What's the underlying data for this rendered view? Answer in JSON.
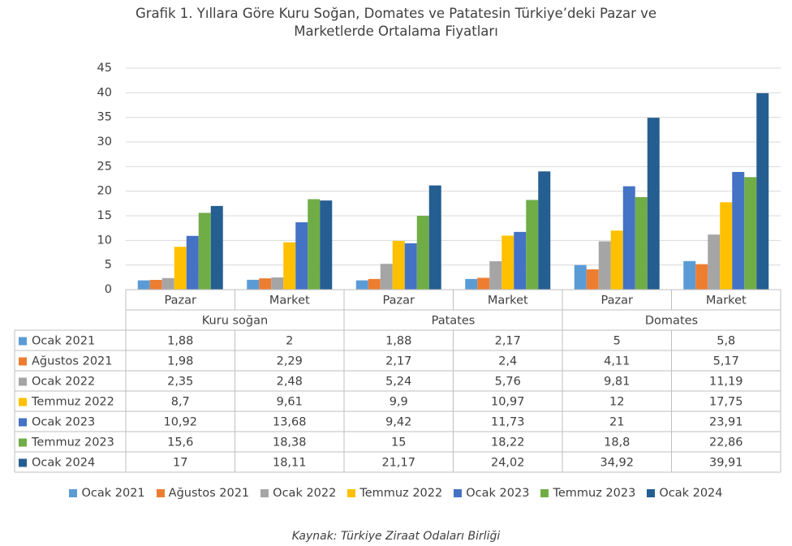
{
  "title_line1": "Grafik 1. Yıllara Göre Kuru Soğan, Domates ve Patatesin Türkiye’deki Pazar ve",
  "title_line2": "Marketlerde Ortalama Fiyatları",
  "source": "Kaynak: Türkiye Ziraat Odaları Birliği",
  "chart_data": {
    "type": "bar",
    "groups": [
      {
        "name": "Kuru soğan",
        "categories": [
          "Pazar",
          "Market"
        ]
      },
      {
        "name": "Patates",
        "categories": [
          "Pazar",
          "Market"
        ]
      },
      {
        "name": "Domates",
        "categories": [
          "Pazar",
          "Market"
        ]
      }
    ],
    "categories": [
      "Pazar",
      "Market",
      "Pazar",
      "Market",
      "Pazar",
      "Market"
    ],
    "yticks": [
      "0",
      "5",
      "10",
      "15",
      "20",
      "25",
      "30",
      "35",
      "40",
      "45"
    ],
    "ylim": [
      0,
      45
    ],
    "series": [
      {
        "name": "Ocak 2021",
        "color": "#5B9BD5",
        "values": [
          1.88,
          2,
          1.88,
          2.17,
          5,
          5.8
        ],
        "labels": [
          "1,88",
          "2",
          "1,88",
          "2,17",
          "5",
          "5,8"
        ]
      },
      {
        "name": "Ağustos 2021",
        "color": "#ED7D31",
        "values": [
          1.98,
          2.29,
          2.17,
          2.4,
          4.11,
          5.17
        ],
        "labels": [
          "1,98",
          "2,29",
          "2,17",
          "2,4",
          "4,11",
          "5,17"
        ]
      },
      {
        "name": "Ocak 2022",
        "color": "#A5A5A5",
        "values": [
          2.35,
          2.48,
          5.24,
          5.76,
          9.81,
          11.19
        ],
        "labels": [
          "2,35",
          "2,48",
          "5,24",
          "5,76",
          "9,81",
          "11,19"
        ]
      },
      {
        "name": "Temmuz 2022",
        "color": "#FFC000",
        "values": [
          8.7,
          9.61,
          9.9,
          10.97,
          12,
          17.75
        ],
        "labels": [
          "8,7",
          "9,61",
          "9,9",
          "10,97",
          "12",
          "17,75"
        ]
      },
      {
        "name": "Ocak 2023",
        "color": "#4472C4",
        "values": [
          10.92,
          13.68,
          9.42,
          11.73,
          21,
          23.91
        ],
        "labels": [
          "10,92",
          "13,68",
          "9,42",
          "11,73",
          "21",
          "23,91"
        ]
      },
      {
        "name": "Temmuz 2023",
        "color": "#70AD47",
        "values": [
          15.6,
          18.38,
          15,
          18.22,
          18.8,
          22.86
        ],
        "labels": [
          "15,6",
          "18,38",
          "15",
          "18,22",
          "18,8",
          "22,86"
        ]
      },
      {
        "name": "Ocak 2024",
        "color": "#255E91",
        "values": [
          17,
          18.11,
          21.17,
          24.02,
          34.92,
          39.91
        ],
        "labels": [
          "17",
          "18,11",
          "21,17",
          "24,02",
          "34,92",
          "39,91"
        ]
      }
    ],
    "grid": true,
    "legend_position": "bottom",
    "data_table": true
  }
}
